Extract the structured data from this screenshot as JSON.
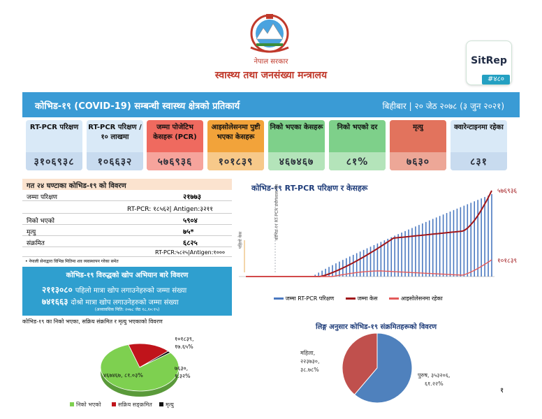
{
  "header": {
    "government": "नेपाल सरकार",
    "ministry": "स्वास्थ्य तथा जनसंख्या मन्त्रालय",
    "sitrep_label": "SitRep",
    "sitrep_number": "#४८०"
  },
  "banner": {
    "title": "कोभिड-१९ (COVID-19) सम्बन्धी स्वास्थ्य क्षेत्रको प्रतिकार्य",
    "date": "बिहीबार | २० जेठ २०७८ (३ जुन २०२१)"
  },
  "stats": [
    {
      "label": "RT-PCR परिक्षण",
      "value": "३१०६९३८",
      "color": "#d9e9f7",
      "bar": "#c8dbef"
    },
    {
      "label": "RT-PCR परिक्षण /१० लाखमा",
      "value": "१०६६३२",
      "color": "#d9e9f7",
      "bar": "#c8dbef"
    },
    {
      "label": "जम्मा पोजेटिभ केसहरू (PCR)",
      "value": "५७६९३६",
      "color": "#ef6a5f",
      "bar": "#f6a49c"
    },
    {
      "label": "आइसोलेसनमा पुष्टी भएका केसहरू",
      "value": "१०१८३९",
      "color": "#f2a33a",
      "bar": "#f7c98a"
    },
    {
      "label": "निको भएका केसहरू",
      "value": "४६७४६७",
      "color": "#7ed08a",
      "bar": "#b4e4ba"
    },
    {
      "label": "निको भएको दर",
      "value": "८१%",
      "color": "#7ed08a",
      "bar": "#b4e4ba"
    },
    {
      "label": "मृत्यु",
      "value": "७६३०",
      "color": "#e2735d",
      "bar": "#eda797"
    },
    {
      "label": "क्वारेन्टाइनमा रहेका",
      "value": "८३१",
      "color": "#d9e9f7",
      "bar": "#c8dbef"
    }
  ],
  "daily": {
    "title": "गत २४ घण्टाका कोभिड-१९ को विवरण",
    "tests_label": "जम्मा परिक्षण",
    "tests_value": "२१७७३",
    "tests_breakdown": "RT-PCR: १८५६२| Antigen:३२११",
    "recovered_label": "निको भएको",
    "recovered_value": "५९०४",
    "deaths_label": "मृत्यु",
    "deaths_value": "७५*",
    "infected_label": "संक्रमित",
    "infected_value": "६८२५",
    "infected_breakdown": "RT-PCR:५८२५|Antigen:१०००",
    "note": "• नेपाली सेनाद्वारा विभिन्न मितिमा शव व्यवस्थापन गरेका समेत"
  },
  "vaccine": {
    "title": "कोभिड-१९ विरुद्धको खोप अभियान बारे विवरण",
    "first_value": "२११३०८०",
    "first_label": "पहिलो मात्रा खोप लगाउनेहरुको जम्मा संख्या",
    "second_value": "७४१६६३",
    "second_label": "दोश्रो मात्रा खोप लगाउनेहरुको जम्मा संख्या",
    "note": "(अध्यावधिक मिति: २०७८ जेठ १८,१०:१५)"
  },
  "outcome_pie": {
    "title": "कोभिड-१९ का निको भएका, सक्रिय संक्रमित र मृत्यु भएकाको विवरण",
    "slices": [
      {
        "name": "निको भएको",
        "value": 467467,
        "label": "४६७४६७, ८१.०३%",
        "color": "#7ed050"
      },
      {
        "name": "सक्रिय सङ्क्रमित",
        "value": 101839,
        "label": "१०१८३९, १७.६५%",
        "color": "#c0141b"
      },
      {
        "name": "मृत्यु",
        "value": 7630,
        "label": "७६३०, १.३२%",
        "color": "#111111"
      }
    ]
  },
  "chart_data": {
    "type": "bar",
    "title": "कोभिड-१९ RT-PCR परिक्षण र केसहरू",
    "legend": [
      "जम्मा RT-PCR परिक्षण",
      "जम्मा केस",
      "आइसोलेसनमा रहेका"
    ],
    "annotations": [
      "पहिलो केस",
      "कोभिड-१९ RT-PCR प्रयोगशाला विस्तार"
    ],
    "end_labels": {
      "total": "५७६९३६",
      "isolation": "१०१८३९"
    },
    "series": [
      {
        "name": "जम्मा RT-PCR परिक्षण",
        "color": "#4a78c0"
      },
      {
        "name": "जम्मा केस",
        "color": "#a0161a"
      },
      {
        "name": "आइसोलेसनमा रहेका",
        "color": "#e35a5a"
      }
    ]
  },
  "gender_pie": {
    "title": "लिङ्ग अनुसार कोभिड-१९ संक्रमितहरूको विवरण",
    "slices": [
      {
        "name": "महिला",
        "label": "महिला, २२३७३०, ३८.७८%",
        "value": 38.78,
        "color": "#c0504d"
      },
      {
        "name": "पुरुष",
        "label": "पुरुष, ३५३२०६, ६१.२२%",
        "value": 61.22,
        "color": "#4f81bd"
      }
    ]
  },
  "page_number": "१"
}
